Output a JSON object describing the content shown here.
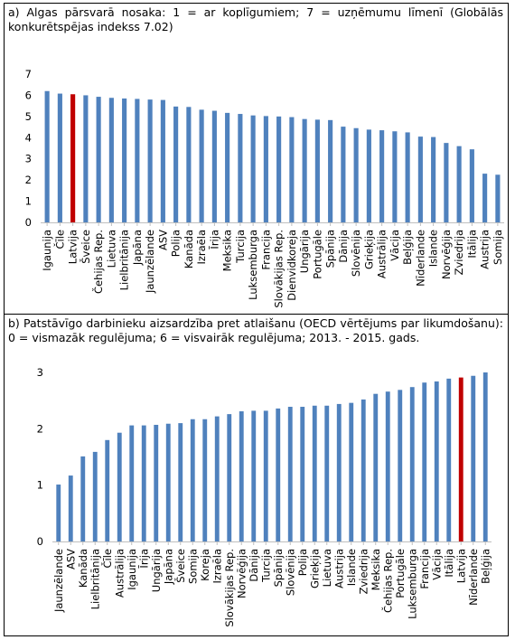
{
  "chart_data": [
    {
      "type": "bar",
      "title": "a) Algas pārsvarā nosaka: 1 = ar koplīgumiem; 7 = uzņēmumu līmenī (Globālās konkurētspējas indekss 7.02)",
      "categories": [
        "Igaunija",
        "Čīle",
        "Latvija",
        "Šveice",
        "Čehijas Rep.",
        "Lietuva",
        "Lielbritānija",
        "Japāna",
        "Jaunzēlande",
        "ASV",
        "Polija",
        "Kanāda",
        "Izraēla",
        "Īrija",
        "Meksika",
        "Turcija",
        "Luksemburga",
        "Francija",
        "Slovākijas Rep.",
        "Dienvidkoreja",
        "Ungārija",
        "Portugāle",
        "Spānija",
        "Dānija",
        "Slovēnija",
        "Grieķija",
        "Austrālija",
        "Vācija",
        "Beļģija",
        "Nīderlande",
        "Islande",
        "Norvēģija",
        "Zviedrija",
        "Itālija",
        "Austrija",
        "Somija"
      ],
      "values": [
        6.2,
        6.08,
        6.05,
        6.0,
        5.93,
        5.88,
        5.85,
        5.83,
        5.8,
        5.78,
        5.47,
        5.45,
        5.32,
        5.27,
        5.17,
        5.12,
        5.05,
        5.02,
        5.0,
        4.97,
        4.88,
        4.85,
        4.83,
        4.52,
        4.45,
        4.38,
        4.35,
        4.3,
        4.25,
        4.05,
        4.03,
        3.75,
        3.6,
        3.45,
        2.3,
        2.25
      ],
      "highlight": "Latvija",
      "ylim": [
        0,
        7
      ],
      "yticks": [
        0,
        1,
        2,
        3,
        4,
        5,
        6,
        7
      ],
      "colors": {
        "bar": "#4f81bd",
        "highlight": "#c00000"
      }
    },
    {
      "type": "bar",
      "title": "b) Patstāvīgo darbinieku aizsardzība pret atlaišanu (OECD vērtējums par likumdošanu): 0 = vismazāk regulējuma; 6 = visvairāk regulējuma; 2013. - 2015. gads.",
      "categories": [
        "Jaunzēlande",
        "ASV",
        "Kanāda",
        "Lielbritānija",
        "Čīle",
        "Austrālija",
        "Igaunija",
        "Īrija",
        "Ungārija",
        "Japāna",
        "Šveice",
        "Somija",
        "Koreja",
        "Izraēla",
        "Slovākijas Rep.",
        "Norvēģija",
        "Dānija",
        "Turcija",
        "Spānija",
        "Slovēnija",
        "Polija",
        "Grieķija",
        "Lietuva",
        "Austrija",
        "Islande",
        "Zviedrija",
        "Meksika",
        "Čehijas Rep.",
        "Portugāle",
        "Luksemburga",
        "Francija",
        "Vācija",
        "Itālija",
        "Latvija",
        "Nīderlande",
        "Beļģija"
      ],
      "values": [
        1.01,
        1.17,
        1.51,
        1.59,
        1.8,
        1.93,
        2.06,
        2.06,
        2.07,
        2.09,
        2.1,
        2.17,
        2.17,
        2.22,
        2.26,
        2.31,
        2.32,
        2.32,
        2.36,
        2.39,
        2.39,
        2.41,
        2.41,
        2.44,
        2.46,
        2.52,
        2.62,
        2.66,
        2.69,
        2.74,
        2.82,
        2.84,
        2.89,
        2.91,
        2.94,
        3.0
      ],
      "highlight": "Latvija",
      "ylim": [
        0,
        3
      ],
      "yticks": [
        0,
        1,
        2,
        3
      ],
      "colors": {
        "bar": "#4f81bd",
        "highlight": "#c00000"
      }
    }
  ]
}
